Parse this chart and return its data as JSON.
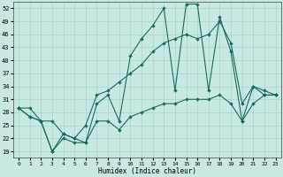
{
  "bg_color": "#c8e8e4",
  "grid_color": "#a8d4cc",
  "line_color": "#1a6b5a",
  "xlabel": "Humidex (Indice chaleur)",
  "xlim": [
    -0.5,
    23.5
  ],
  "ylim": [
    17.5,
    53.5
  ],
  "yticks": [
    19,
    22,
    25,
    28,
    31,
    34,
    37,
    40,
    43,
    46,
    49,
    52
  ],
  "xticks": [
    0,
    1,
    2,
    3,
    4,
    5,
    6,
    7,
    8,
    9,
    10,
    11,
    12,
    13,
    14,
    15,
    16,
    17,
    18,
    19,
    20,
    21,
    22,
    23
  ],
  "line_zigzag_x": [
    0,
    1,
    2,
    3,
    4,
    5,
    6,
    7,
    8,
    9,
    10,
    11,
    12,
    13,
    14,
    15,
    16,
    17,
    18,
    19,
    20,
    21,
    22,
    23
  ],
  "line_zigzag_y": [
    29,
    27,
    26,
    19,
    23,
    22,
    21,
    30,
    32,
    26,
    41,
    45,
    48,
    52,
    33,
    53,
    53,
    33,
    50,
    42,
    26,
    34,
    33,
    32
  ],
  "line_mid_x": [
    0,
    1,
    2,
    3,
    4,
    5,
    6,
    7,
    8,
    9,
    10,
    11,
    12,
    13,
    14,
    15,
    16,
    17,
    18,
    19,
    20,
    21,
    22,
    23
  ],
  "line_mid_y": [
    29,
    29,
    26,
    26,
    23,
    22,
    25,
    32,
    33,
    35,
    37,
    39,
    42,
    44,
    45,
    46,
    45,
    46,
    49,
    44,
    30,
    34,
    32,
    32
  ],
  "line_low_x": [
    0,
    1,
    2,
    3,
    4,
    5,
    6,
    7,
    8,
    9,
    10,
    11,
    12,
    13,
    14,
    15,
    16,
    17,
    18,
    19,
    20,
    21,
    22,
    23
  ],
  "line_low_y": [
    29,
    27,
    26,
    19,
    22,
    21,
    21,
    26,
    26,
    24,
    27,
    28,
    29,
    30,
    30,
    31,
    31,
    31,
    32,
    30,
    26,
    30,
    32,
    32
  ],
  "marker_size": 2.0,
  "line_width": 0.8,
  "tick_fontsize": 5.0,
  "xlabel_fontsize": 5.5
}
